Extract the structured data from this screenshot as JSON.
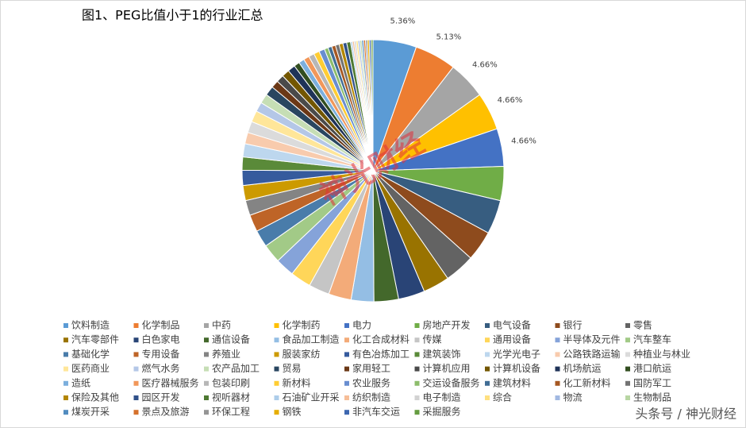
{
  "chart_data": {
    "type": "pie",
    "title": "图1、PEG比值小于1的行业汇总",
    "categories": [
      "饮料制造",
      "化学制品",
      "中药",
      "化学制药",
      "电力",
      "房地产开发",
      "电气设备",
      "银行",
      "零售",
      "汽车零部件",
      "白色家电",
      "通信设备",
      "食品加工制造",
      "化工合成材料",
      "传媒",
      "通用设备",
      "半导体及元件",
      "汽车整车",
      "基础化学",
      "专用设备",
      "养殖业",
      "服装家纺",
      "有色冶炼加工",
      "建筑装饰",
      "光学光电子",
      "公路铁路运输",
      "种植业与林业",
      "医药商业",
      "燃气水务",
      "农产品加工",
      "贸易",
      "家用轻工",
      "计算机应用",
      "计算机设备",
      "机场航运",
      "港口航运",
      "造纸",
      "医疗器械服务",
      "包装印刷",
      "新材料",
      "农业服务",
      "交运设备服务",
      "建筑材料",
      "化工新材料",
      "国防军工",
      "保险及其他",
      "园区开发",
      "视听器材",
      "石油矿业开采",
      "纺织制造",
      "电子制造",
      "综合",
      "物流",
      "生物制品",
      "煤炭开采",
      "景点及旅游",
      "环保工程",
      "钢铁",
      "非汽车交运",
      "采掘服务"
    ],
    "values": [
      5.36,
      5.13,
      4.66,
      4.66,
      4.66,
      4.2,
      4.2,
      3.73,
      3.73,
      3.26,
      3.26,
      3.03,
      2.8,
      2.8,
      2.56,
      2.56,
      2.33,
      2.33,
      2.1,
      2.1,
      1.86,
      1.86,
      1.86,
      1.63,
      1.63,
      1.4,
      1.4,
      1.4,
      1.17,
      1.17,
      1.17,
      0.93,
      0.93,
      0.93,
      0.93,
      0.7,
      0.7,
      0.7,
      0.7,
      0.7,
      0.7,
      0.47,
      0.47,
      0.47,
      0.47,
      0.47,
      0.47,
      0.47,
      0.23,
      0.23,
      0.23,
      0.23,
      0.23,
      0.23,
      0.23,
      0.23,
      0.23,
      0.23,
      0.23,
      0.23
    ],
    "value_labels": [
      "5.36%",
      "5.13%",
      "4.66%",
      "4.66%",
      "4.66%",
      null,
      null,
      null,
      null,
      null,
      null,
      null,
      null,
      null,
      null,
      null,
      null,
      null,
      null,
      null,
      null,
      null,
      null,
      null,
      null,
      null,
      null,
      null,
      null,
      null,
      null,
      null,
      null,
      null,
      null,
      null,
      null,
      null,
      null,
      null,
      null,
      null,
      null,
      null,
      null,
      null,
      null,
      null,
      null,
      null,
      null,
      null,
      null,
      null,
      null,
      null,
      null,
      null,
      null,
      null
    ],
    "colors": [
      "#5b9bd5",
      "#ed7d31",
      "#a5a5a5",
      "#ffc000",
      "#4472c4",
      "#70ad47"
    ],
    "watermark": "神光财经",
    "credit": "头条号 / 神光财经"
  }
}
